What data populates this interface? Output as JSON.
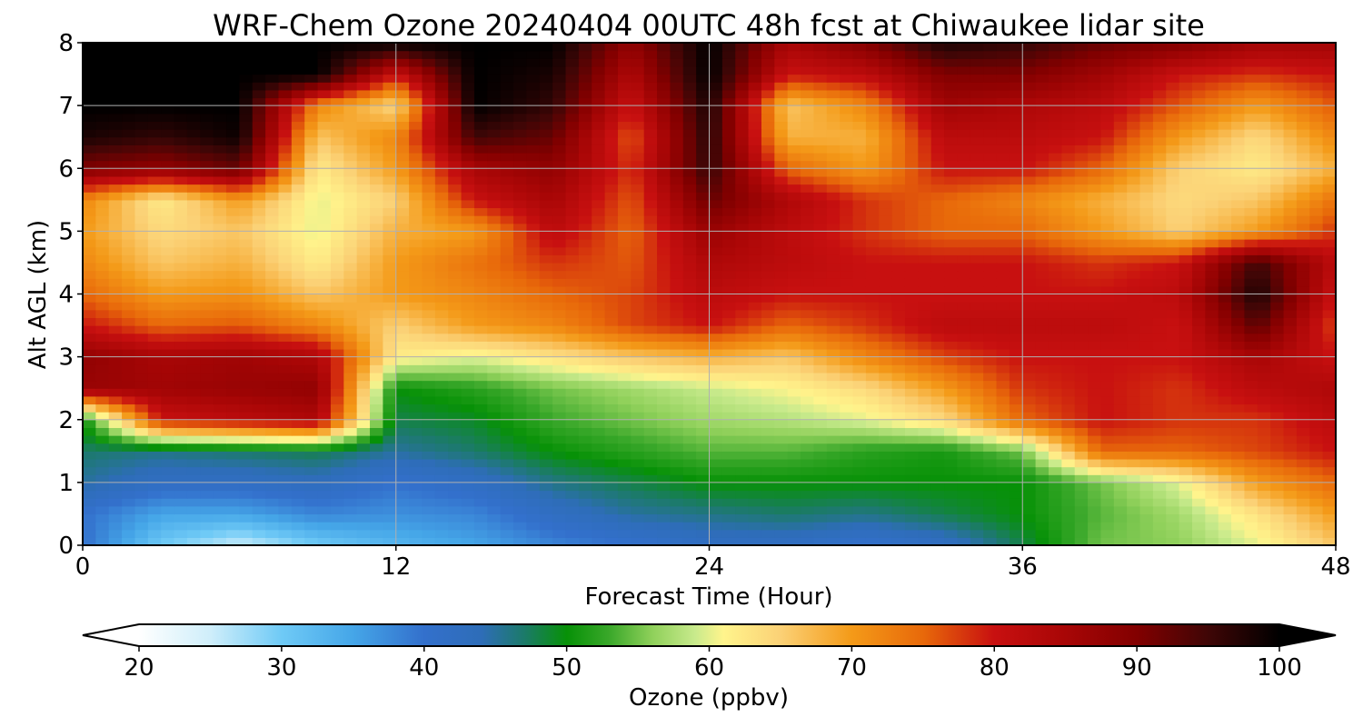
{
  "chart_data": {
    "type": "heatmap",
    "title": "WRF-Chem Ozone  20240404 00UTC 48h fcst at Chiwaukee lidar site",
    "xlabel": "Forecast Time (Hour)",
    "ylabel": "Alt AGL (km)",
    "xlim": [
      0,
      48
    ],
    "ylim": [
      0,
      8
    ],
    "x_ticks": [
      0,
      12,
      24,
      36,
      48
    ],
    "y_ticks": [
      0,
      1,
      2,
      3,
      4,
      5,
      6,
      7,
      8
    ],
    "grid": true,
    "x_hours": [
      0,
      3,
      6,
      9,
      12,
      15,
      18,
      21,
      24,
      27,
      30,
      33,
      36,
      39,
      42,
      45,
      48
    ],
    "y_km": [
      0,
      0.5,
      1,
      1.5,
      2,
      2.5,
      3,
      3.5,
      4,
      4.5,
      5,
      5.5,
      6,
      6.5,
      7,
      7.5,
      8
    ],
    "ozone_ppbv_by_altitude": [
      [
        40,
        30,
        25,
        30,
        33,
        35,
        38,
        40,
        42,
        42,
        40,
        42,
        48,
        55,
        56,
        60,
        66
      ],
      [
        40,
        35,
        35,
        38,
        37,
        38,
        42,
        45,
        46,
        47,
        46,
        48,
        50,
        54,
        57,
        63,
        70
      ],
      [
        45,
        42,
        42,
        43,
        40,
        42,
        46,
        48,
        50,
        50,
        50,
        50,
        50,
        55,
        60,
        70,
        75
      ],
      [
        47,
        46,
        47,
        48,
        45,
        47,
        50,
        52,
        54,
        54,
        52,
        51,
        55,
        75,
        75,
        77,
        80
      ],
      [
        50,
        80,
        82,
        84,
        48,
        49,
        53,
        55,
        57,
        58,
        60,
        64,
        75,
        80,
        78,
        78,
        82
      ],
      [
        87,
        86,
        87,
        88,
        50,
        52,
        55,
        57,
        59,
        61,
        64,
        70,
        78,
        80,
        78,
        82,
        84
      ],
      [
        88,
        85,
        86,
        84,
        62,
        60,
        63,
        66,
        68,
        66,
        72,
        77,
        80,
        80,
        80,
        85,
        80
      ],
      [
        80,
        75,
        76,
        72,
        65,
        70,
        72,
        77,
        80,
        75,
        78,
        82,
        82,
        82,
        80,
        93,
        77
      ],
      [
        75,
        70,
        71,
        66,
        70,
        72,
        75,
        77,
        82,
        80,
        80,
        80,
        80,
        80,
        82,
        98,
        80
      ],
      [
        72,
        66,
        68,
        62,
        70,
        74,
        78,
        76,
        84,
        82,
        80,
        80,
        80,
        78,
        80,
        95,
        82
      ],
      [
        70,
        64,
        66,
        60,
        68,
        70,
        82,
        75,
        87,
        82,
        78,
        75,
        75,
        70,
        65,
        70,
        78
      ],
      [
        72,
        62,
        70,
        60,
        65,
        80,
        85,
        76,
        92,
        84,
        78,
        75,
        72,
        68,
        64,
        66,
        74
      ],
      [
        90,
        88,
        92,
        62,
        70,
        85,
        88,
        78,
        96,
        75,
        70,
        80,
        80,
        75,
        65,
        62,
        68
      ],
      [
        98,
        96,
        99,
        66,
        72,
        95,
        92,
        76,
        97,
        68,
        68,
        82,
        82,
        80,
        70,
        64,
        72
      ],
      [
        100,
        100,
        100,
        72,
        64,
        100,
        96,
        80,
        98,
        66,
        72,
        86,
        84,
        82,
        76,
        70,
        76
      ],
      [
        100,
        100,
        100,
        100,
        80,
        100,
        98,
        84,
        100,
        80,
        82,
        90,
        90,
        86,
        80,
        78,
        80
      ],
      [
        100,
        100,
        100,
        100,
        100,
        100,
        100,
        88,
        100,
        85,
        90,
        98,
        96,
        92,
        90,
        86,
        86
      ]
    ],
    "colorbar": {
      "label": "Ozone  (ppbv)",
      "min": 20,
      "max": 100,
      "ticks": [
        20,
        30,
        40,
        50,
        60,
        70,
        80,
        90,
        100
      ],
      "extend": "both",
      "colors": [
        {
          "value": 20,
          "color": "#ffffff"
        },
        {
          "value": 25,
          "color": "#cfeefa"
        },
        {
          "value": 30,
          "color": "#6fcaf6"
        },
        {
          "value": 35,
          "color": "#45a6e8"
        },
        {
          "value": 40,
          "color": "#3370cc"
        },
        {
          "value": 44,
          "color": "#2e6db8"
        },
        {
          "value": 47,
          "color": "#1c7a6a"
        },
        {
          "value": 50,
          "color": "#079107"
        },
        {
          "value": 53,
          "color": "#3aa82a"
        },
        {
          "value": 56,
          "color": "#8fd05a"
        },
        {
          "value": 59,
          "color": "#c8ea8c"
        },
        {
          "value": 61,
          "color": "#fff48c"
        },
        {
          "value": 65,
          "color": "#fbd176"
        },
        {
          "value": 70,
          "color": "#f49a18"
        },
        {
          "value": 75,
          "color": "#e8690a"
        },
        {
          "value": 80,
          "color": "#c81010"
        },
        {
          "value": 85,
          "color": "#a80606"
        },
        {
          "value": 90,
          "color": "#820000"
        },
        {
          "value": 95,
          "color": "#3f0606"
        },
        {
          "value": 100,
          "color": "#000000"
        }
      ]
    }
  }
}
